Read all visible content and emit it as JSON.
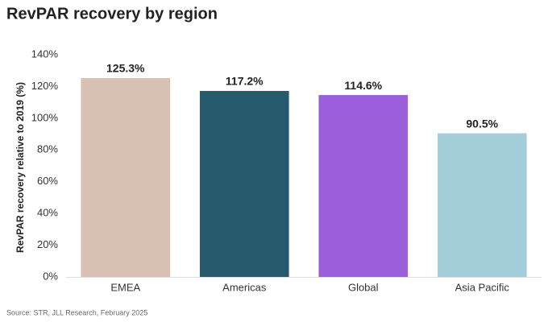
{
  "chart_data": {
    "type": "bar",
    "title": "RevPAR recovery by region",
    "y_label": "RevPAR recovery relative to 2019 (%)",
    "source": "Source: STR, JLL Research, February 2025",
    "categories": [
      "EMEA",
      "Americas",
      "Global",
      "Asia Pacific"
    ],
    "values": [
      125.3,
      117.2,
      114.6,
      90.5
    ],
    "value_labels": [
      "125.3%",
      "117.2%",
      "114.6%",
      "90.5%"
    ],
    "colors": [
      "#d8c1b3",
      "#265b6e",
      "#9b5fdc",
      "#a3cdd9"
    ],
    "ylim": [
      0,
      140
    ],
    "yticks": [
      {
        "value": 0,
        "label": "0%"
      },
      {
        "value": 20,
        "label": "20%"
      },
      {
        "value": 40,
        "label": "40%"
      },
      {
        "value": 60,
        "label": "60%"
      },
      {
        "value": 80,
        "label": "80%"
      },
      {
        "value": 100,
        "label": "100%"
      },
      {
        "value": 120,
        "label": "120%"
      },
      {
        "value": 140,
        "label": "140%"
      }
    ],
    "grid": false
  }
}
